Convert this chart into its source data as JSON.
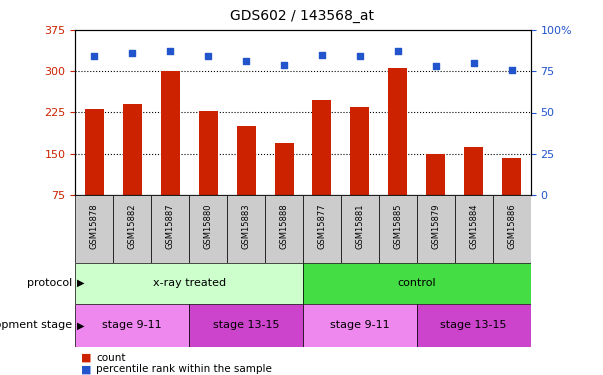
{
  "title": "GDS602 / 143568_at",
  "samples": [
    "GSM15878",
    "GSM15882",
    "GSM15887",
    "GSM15880",
    "GSM15883",
    "GSM15888",
    "GSM15877",
    "GSM15881",
    "GSM15885",
    "GSM15879",
    "GSM15884",
    "GSM15886"
  ],
  "counts": [
    232,
    240,
    300,
    228,
    200,
    170,
    248,
    235,
    305,
    150,
    163,
    143
  ],
  "percentiles": [
    84,
    86,
    87,
    84,
    81,
    79,
    85,
    84,
    87,
    78,
    80,
    76
  ],
  "ylim_left": [
    75,
    375
  ],
  "ylim_right": [
    0,
    100
  ],
  "yticks_left": [
    75,
    150,
    225,
    300,
    375
  ],
  "yticks_right": [
    0,
    25,
    50,
    75,
    100
  ],
  "bar_color": "#cc2200",
  "dot_color": "#2255cc",
  "protocol_groups": [
    {
      "label": "x-ray treated",
      "start": 0,
      "end": 6,
      "color": "#ccffcc"
    },
    {
      "label": "control",
      "start": 6,
      "end": 12,
      "color": "#44dd44"
    }
  ],
  "stage_groups": [
    {
      "label": "stage 9-11",
      "start": 0,
      "end": 3,
      "color": "#ee88ee"
    },
    {
      "label": "stage 13-15",
      "start": 3,
      "end": 6,
      "color": "#cc44cc"
    },
    {
      "label": "stage 9-11",
      "start": 6,
      "end": 9,
      "color": "#ee88ee"
    },
    {
      "label": "stage 13-15",
      "start": 9,
      "end": 12,
      "color": "#cc44cc"
    }
  ],
  "legend_items": [
    {
      "label": "count",
      "color": "#cc2200"
    },
    {
      "label": "percentile rank within the sample",
      "color": "#2255cc"
    }
  ],
  "protocol_label": "protocol",
  "stage_label": "development stage",
  "bar_width": 0.5,
  "sample_box_color": "#cccccc",
  "gridline_values": [
    150,
    225,
    300
  ]
}
